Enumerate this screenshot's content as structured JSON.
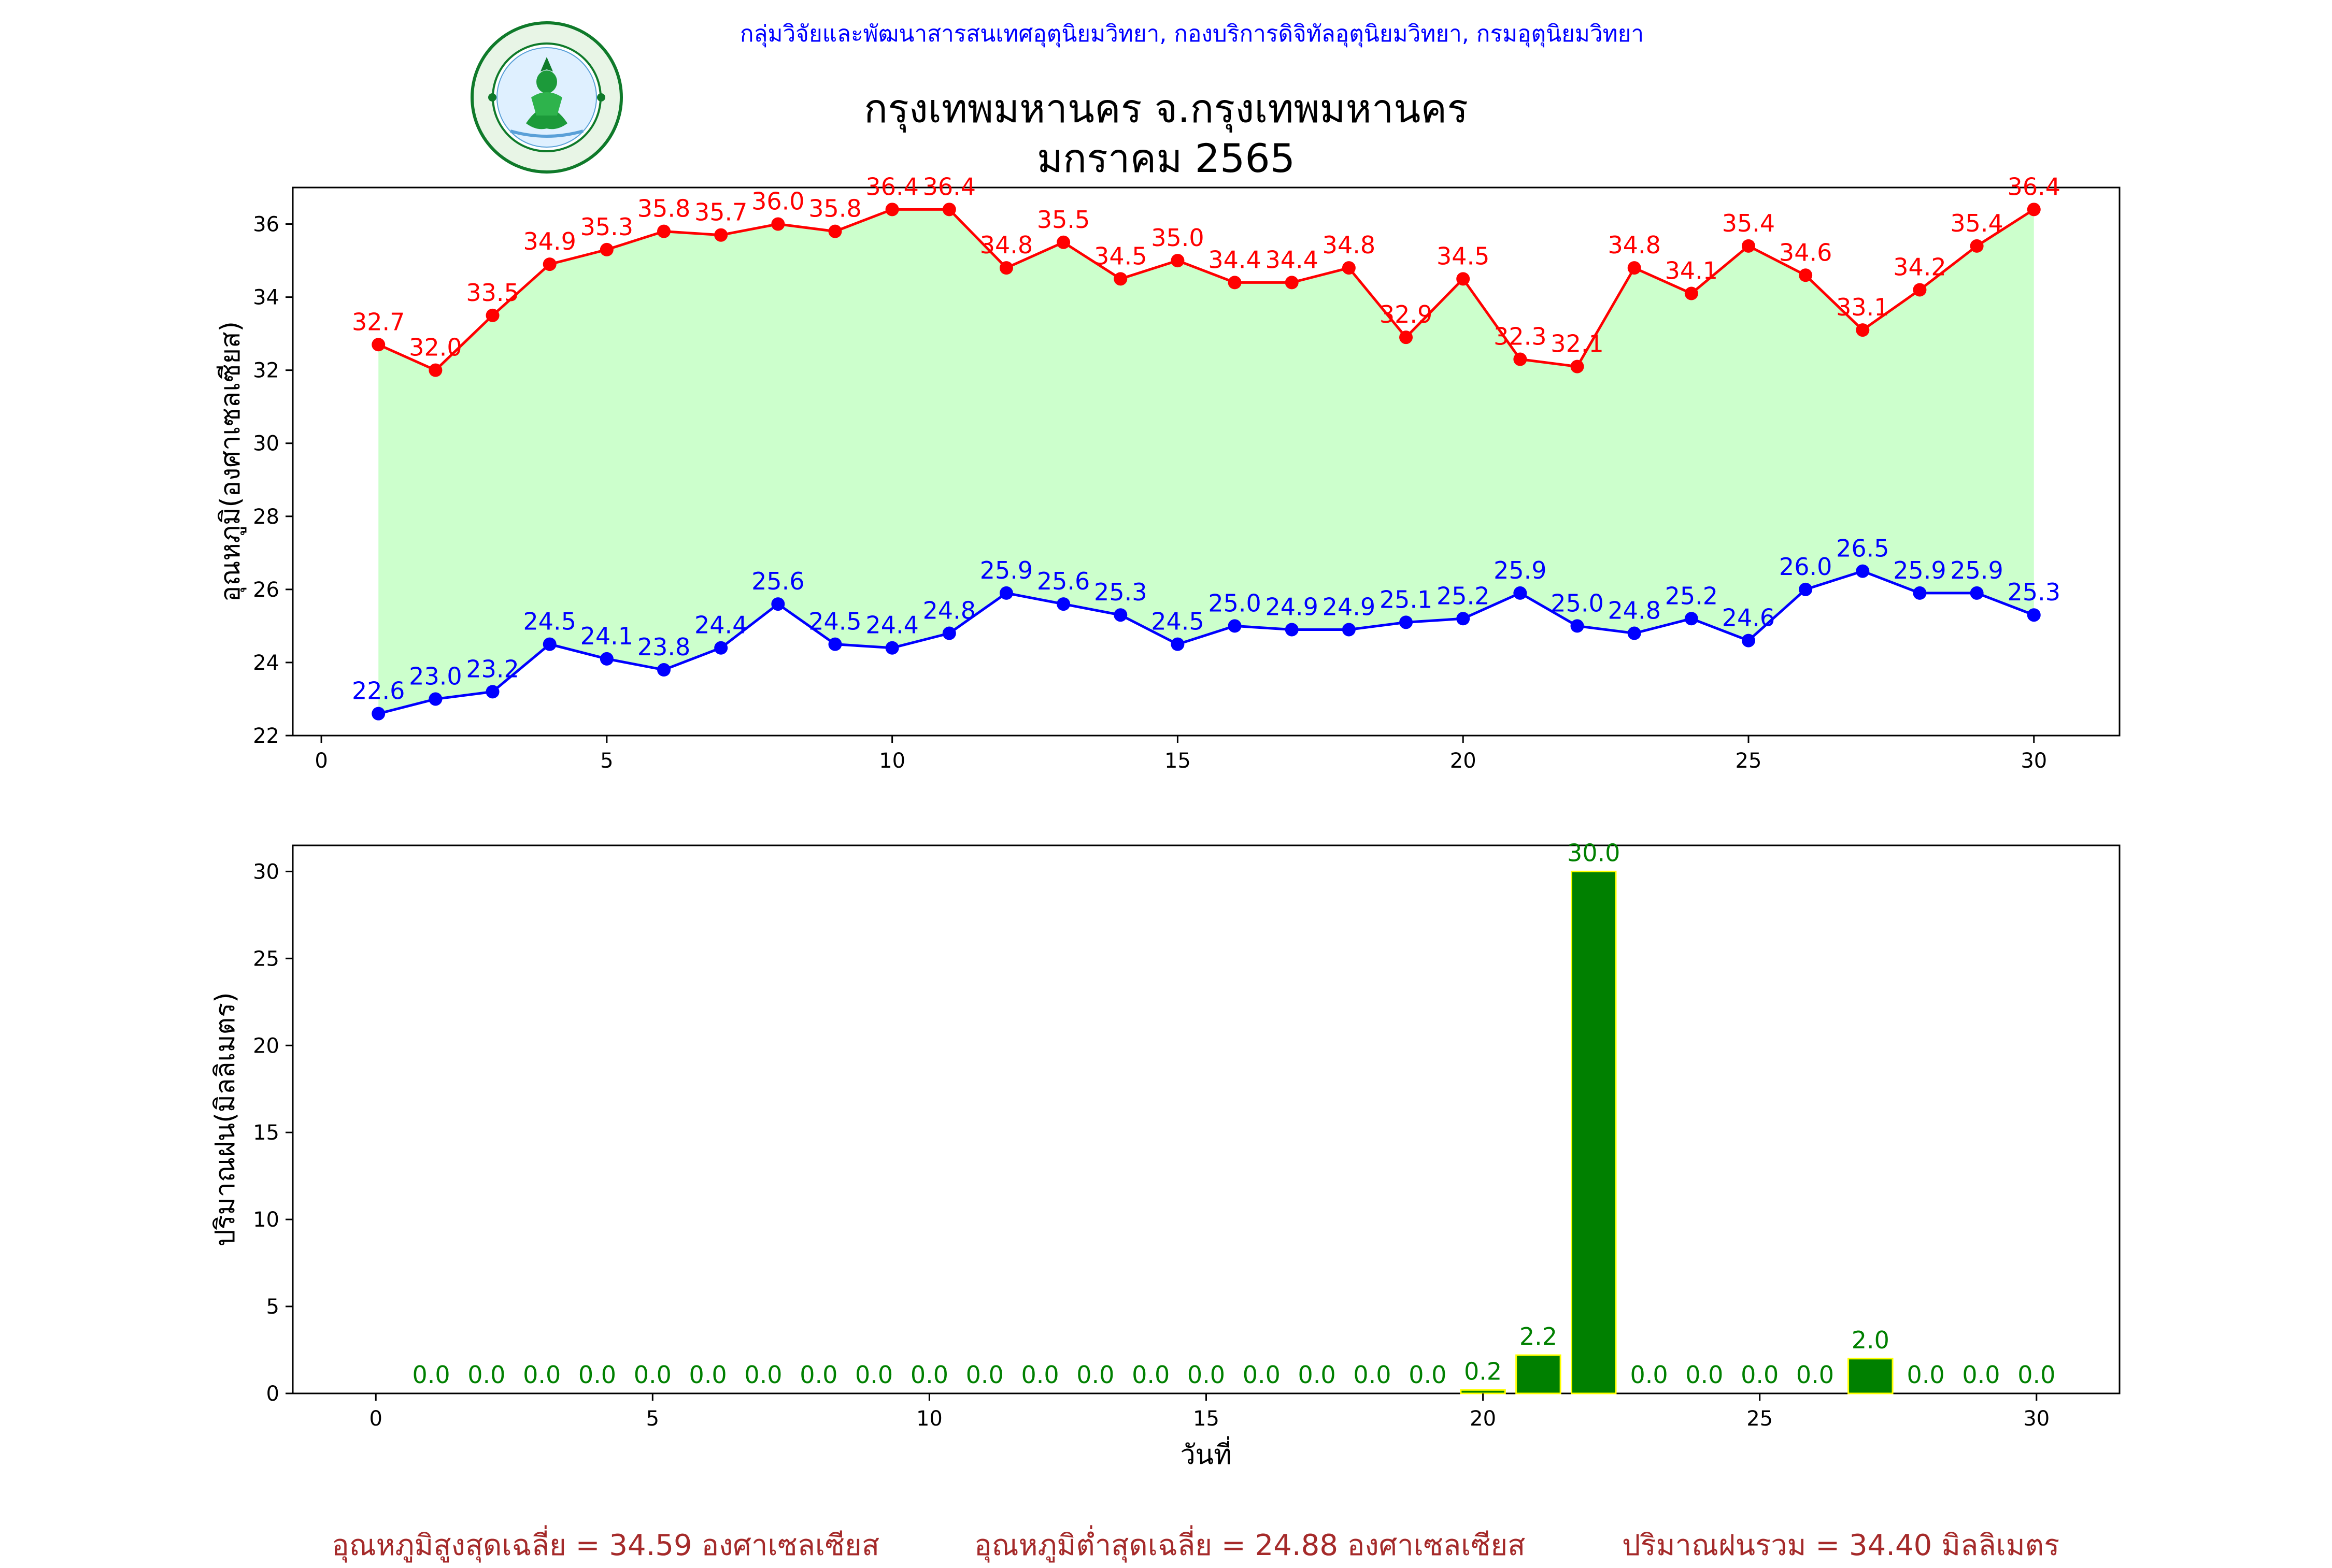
{
  "header": {
    "agency": "กลุ่มวิจัยและพัฒนาสารสนเทศอุตุนิยมวิทยา, กองบริการดิจิทัลอุตุนิยมวิทยา, กรมอุตุนิยมวิทยา",
    "title": "กรุงเทพมหานคร จ.กรุงเทพมหานคร",
    "subtitle": "มกราคม 2565",
    "logo_text_top": "กรมอุตุนิยมวิทยา",
    "logo_text_bottom": "METEOROLOGICAL DEPARTMENT"
  },
  "colors": {
    "agency": "#0000ff",
    "max": "#ff0000",
    "min": "#0000ff",
    "fill": "#ccffcc",
    "rain_bar": "#008000",
    "rain_edge": "#ffff00",
    "rain_label": "#008000",
    "footer": "#a52a2a"
  },
  "chart_data": [
    {
      "type": "line",
      "ylabel": "อุณหภูมิ(องศาเซลเซียส)",
      "xlabel": "",
      "xlim": [
        -0.5,
        31.5
      ],
      "ylim": [
        22,
        37
      ],
      "xticks": [
        0,
        5,
        10,
        15,
        20,
        25,
        30
      ],
      "yticks": [
        22,
        24,
        26,
        28,
        30,
        32,
        34,
        36
      ],
      "grid": false,
      "fill_between_series": true,
      "x": [
        1,
        2,
        3,
        4,
        5,
        6,
        7,
        8,
        9,
        10,
        11,
        12,
        13,
        14,
        15,
        16,
        17,
        18,
        19,
        20,
        21,
        22,
        23,
        24,
        25,
        26,
        27,
        28,
        29,
        30
      ],
      "series": [
        {
          "key": "max",
          "values": [
            32.7,
            32.0,
            33.5,
            34.9,
            35.3,
            35.8,
            35.7,
            36.0,
            35.8,
            36.4,
            36.4,
            34.8,
            35.5,
            34.5,
            35.0,
            34.4,
            34.4,
            34.8,
            32.9,
            34.5,
            32.3,
            32.1,
            34.8,
            34.1,
            35.4,
            34.6,
            33.1,
            34.2,
            35.4,
            36.4
          ],
          "labels": [
            "32.7",
            "32.0",
            "33.5",
            "34.9",
            "35.3",
            "35.8",
            "35.7",
            "36.0",
            "35.8",
            "36.4",
            "36.4",
            "34.8",
            "35.5",
            "34.5",
            "35.0",
            "34.4",
            "34.4",
            "34.8",
            "32.9",
            "34.5",
            "32.3",
            "32.1",
            "34.8",
            "34.1",
            "35.4",
            "34.6",
            "33.1",
            "34.2",
            "35.4",
            "36.4"
          ]
        },
        {
          "key": "min",
          "values": [
            22.6,
            23.0,
            23.2,
            24.5,
            24.1,
            23.8,
            24.4,
            25.6,
            24.5,
            24.4,
            24.8,
            25.9,
            25.6,
            25.3,
            24.5,
            25.0,
            24.9,
            24.9,
            25.1,
            25.2,
            25.9,
            25.0,
            24.8,
            25.2,
            24.6,
            26.0,
            26.5,
            25.9,
            25.9,
            25.3
          ],
          "labels": [
            "22.6",
            "23.0",
            "23.2",
            "24.5",
            "24.1",
            "23.8",
            "24.4",
            "25.6",
            "24.5",
            "24.4",
            "24.8",
            "25.9",
            "25.6",
            "25.3",
            "24.5",
            "25.0",
            "24.9",
            "24.9",
            "25.1",
            "25.2",
            "25.9",
            "25.0",
            "24.8",
            "25.2",
            "24.6",
            "26.0",
            "26.5",
            "25.9",
            "25.9",
            "25.3"
          ]
        }
      ]
    },
    {
      "type": "bar",
      "ylabel": "ปริมาณฝน(มิลลิเมตร)",
      "xlabel": "วันที่",
      "xlim": [
        -1.5,
        31.5
      ],
      "ylim": [
        0,
        31.5
      ],
      "xticks": [
        0,
        5,
        10,
        15,
        20,
        25,
        30
      ],
      "yticks": [
        0,
        5,
        10,
        15,
        20,
        25,
        30
      ],
      "grid": false,
      "x": [
        1,
        2,
        3,
        4,
        5,
        6,
        7,
        8,
        9,
        10,
        11,
        12,
        13,
        14,
        15,
        16,
        17,
        18,
        19,
        20,
        21,
        22,
        23,
        24,
        25,
        26,
        27,
        28,
        29,
        30
      ],
      "values": [
        0,
        0,
        0,
        0,
        0,
        0,
        0,
        0,
        0,
        0,
        0,
        0,
        0,
        0,
        0,
        0,
        0,
        0,
        0,
        0.2,
        2.2,
        30.0,
        0,
        0,
        0,
        0,
        2.0,
        0,
        0,
        0
      ],
      "labels": [
        "0.0",
        "0.0",
        "0.0",
        "0.0",
        "0.0",
        "0.0",
        "0.0",
        "0.0",
        "0.0",
        "0.0",
        "0.0",
        "0.0",
        "0.0",
        "0.0",
        "0.0",
        "0.0",
        "0.0",
        "0.0",
        "0.0",
        "0.2",
        "2.2",
        "30.0",
        "0.0",
        "0.0",
        "0.0",
        "0.0",
        "2.0",
        "0.0",
        "0.0",
        "0.0"
      ]
    }
  ],
  "footer": {
    "avg_max": "อุณหภูมิสูงสุดเฉลี่ย = 34.59 องศาเซลเซียส",
    "avg_min": "อุณหภูมิต่ำสุดเฉลี่ย = 24.88 องศาเซลเซียส",
    "total_rain": "ปริมาณฝนรวม = 34.40 มิลลิเมตร"
  }
}
